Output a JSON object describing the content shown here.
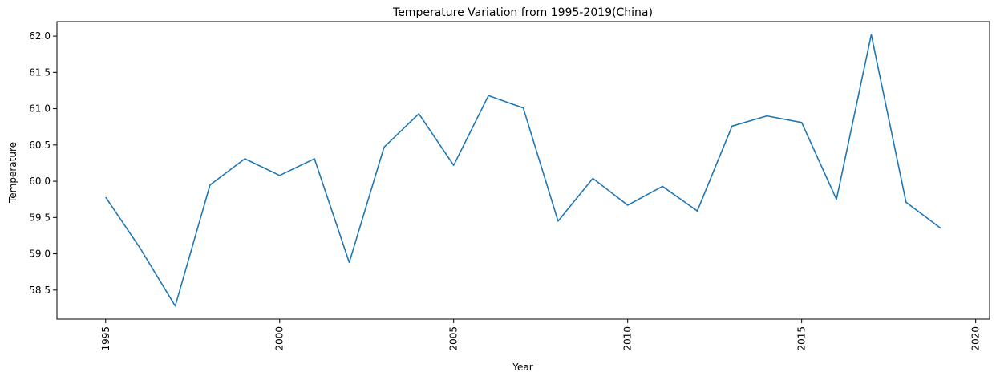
{
  "chart_data": {
    "type": "line",
    "title": "Temperature Variation from 1995-2019(China)",
    "xlabel": "Year",
    "ylabel": "Temperature",
    "xlim": [
      1993.6,
      2020.4
    ],
    "ylim": [
      58.1,
      62.2
    ],
    "x_ticks": [
      1995,
      2000,
      2005,
      2010,
      2015,
      2020
    ],
    "y_ticks": [
      58.5,
      59.0,
      59.5,
      60.0,
      60.5,
      61.0,
      61.5,
      62.0
    ],
    "grid": false,
    "legend": "none",
    "series": [
      {
        "color": "#1f77b4",
        "x": [
          1995,
          1996,
          1997,
          1998,
          1999,
          2000,
          2001,
          2002,
          2003,
          2004,
          2005,
          2006,
          2007,
          2008,
          2009,
          2010,
          2011,
          2012,
          2013,
          2014,
          2015,
          2016,
          2017,
          2018,
          2019
        ],
        "values": [
          59.78,
          59.07,
          58.28,
          59.95,
          60.31,
          60.08,
          60.31,
          58.88,
          60.47,
          60.93,
          60.22,
          61.18,
          61.01,
          59.45,
          60.04,
          59.67,
          59.93,
          59.59,
          60.76,
          60.9,
          60.81,
          59.75,
          62.02,
          59.71,
          59.35
        ]
      }
    ]
  }
}
